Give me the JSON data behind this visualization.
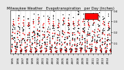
{
  "title": "Milwaukee Weather   Evapotranspiration   per Day (Inches)",
  "title_fontsize": 3.8,
  "bg_color": "#e8e8e8",
  "plot_bg_color": "#ffffff",
  "red_color": "#ff0000",
  "black_color": "#000000",
  "grid_color": "#888888",
  "ylim": [
    0,
    0.4
  ],
  "yticks": [
    0.1,
    0.2,
    0.3,
    0.4
  ],
  "ytick_labels": [
    "0.1",
    "0.2",
    "0.3",
    "0.4"
  ],
  "years": [
    1995,
    1996,
    1997,
    1998,
    1999,
    2000,
    2001,
    2002,
    2003,
    2004,
    2005,
    2006,
    2007,
    2008,
    2009,
    2010,
    2011,
    2012,
    2013,
    2014
  ],
  "monthly_et": [
    [
      0.02,
      0.03,
      0.07,
      0.14,
      0.2,
      0.28,
      0.3,
      0.27,
      0.19,
      0.11,
      0.05,
      0.02
    ],
    [
      0.02,
      0.04,
      0.09,
      0.15,
      0.21,
      0.31,
      0.33,
      0.28,
      0.2,
      0.12,
      0.06,
      0.02
    ],
    [
      0.03,
      0.04,
      0.08,
      0.14,
      0.19,
      0.29,
      0.31,
      0.27,
      0.18,
      0.1,
      0.05,
      0.02
    ],
    [
      0.02,
      0.03,
      0.07,
      0.13,
      0.18,
      0.26,
      0.29,
      0.27,
      0.2,
      0.11,
      0.05,
      0.02
    ],
    [
      0.02,
      0.04,
      0.08,
      0.14,
      0.2,
      0.28,
      0.3,
      0.25,
      0.18,
      0.1,
      0.05,
      0.02
    ],
    [
      0.03,
      0.04,
      0.09,
      0.16,
      0.22,
      0.32,
      0.34,
      0.29,
      0.21,
      0.12,
      0.06,
      0.02
    ],
    [
      0.02,
      0.03,
      0.07,
      0.13,
      0.18,
      0.27,
      0.28,
      0.24,
      0.17,
      0.09,
      0.05,
      0.02
    ],
    [
      0.03,
      0.04,
      0.09,
      0.15,
      0.21,
      0.3,
      0.32,
      0.28,
      0.2,
      0.11,
      0.06,
      0.02
    ],
    [
      0.02,
      0.04,
      0.08,
      0.14,
      0.19,
      0.28,
      0.3,
      0.26,
      0.19,
      0.1,
      0.05,
      0.02
    ],
    [
      0.02,
      0.03,
      0.08,
      0.13,
      0.18,
      0.26,
      0.28,
      0.25,
      0.17,
      0.09,
      0.04,
      0.02
    ],
    [
      0.03,
      0.04,
      0.09,
      0.16,
      0.21,
      0.31,
      0.33,
      0.28,
      0.2,
      0.11,
      0.06,
      0.02
    ],
    [
      0.02,
      0.04,
      0.08,
      0.15,
      0.2,
      0.29,
      0.31,
      0.27,
      0.19,
      0.1,
      0.05,
      0.02
    ],
    [
      0.02,
      0.03,
      0.07,
      0.13,
      0.19,
      0.28,
      0.3,
      0.26,
      0.18,
      0.09,
      0.05,
      0.02
    ],
    [
      0.02,
      0.04,
      0.08,
      0.14,
      0.2,
      0.29,
      0.31,
      0.27,
      0.19,
      0.1,
      0.05,
      0.02
    ],
    [
      0.03,
      0.04,
      0.09,
      0.15,
      0.21,
      0.3,
      0.32,
      0.27,
      0.2,
      0.11,
      0.05,
      0.02
    ],
    [
      0.02,
      0.03,
      0.07,
      0.13,
      0.18,
      0.27,
      0.29,
      0.26,
      0.18,
      0.09,
      0.04,
      0.02
    ],
    [
      0.03,
      0.04,
      0.09,
      0.15,
      0.21,
      0.31,
      0.33,
      0.29,
      0.2,
      0.11,
      0.06,
      0.02
    ],
    [
      0.03,
      0.05,
      0.1,
      0.17,
      0.23,
      0.33,
      0.36,
      0.31,
      0.22,
      0.12,
      0.06,
      0.03
    ],
    [
      0.02,
      0.04,
      0.08,
      0.14,
      0.19,
      0.28,
      0.3,
      0.27,
      0.18,
      0.1,
      0.05,
      0.02
    ],
    [
      0.02,
      0.03,
      0.07,
      0.13,
      0.18,
      0.26,
      0.28,
      0.25,
      0.17,
      0.09,
      0.04,
      0.02
    ]
  ],
  "marker_size_red": 1.5,
  "marker_size_black": 1.0,
  "tick_fontsize": 3.0,
  "legend_color": "#ff0000"
}
